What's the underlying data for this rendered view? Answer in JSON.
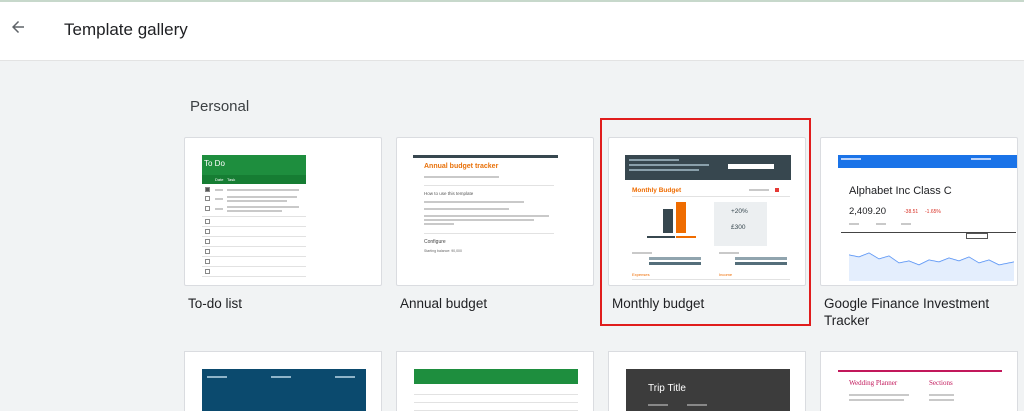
{
  "header": {
    "title": "Template gallery",
    "back_icon": "arrow-back-icon"
  },
  "section": {
    "title": "Personal"
  },
  "templates": [
    {
      "label": "To-do list",
      "thumb_title": "To Do",
      "thumb_header": "Date",
      "thumb_task": "Task",
      "thumb_link": "2. Do something",
      "accent": "#1e8e3e"
    },
    {
      "label": "Annual budget",
      "thumb_title": "Annual budget tracker",
      "thumb_subtitle": "How to use this template",
      "thumb_configure": "Configure",
      "thumb_value": "Starting balance: 90,000",
      "accent": "#e8710a"
    },
    {
      "label": "Monthly budget",
      "thumb_title": "Monthly Budget",
      "thumb_pct": "+20%",
      "thumb_amount": "£300",
      "thumb_expenses": "Expenses",
      "thumb_income": "Income",
      "selected": true,
      "accent": "#ef6c00"
    },
    {
      "label": "Google Finance Investment Tracker",
      "thumb_title": "Alphabet Inc Class C",
      "thumb_price": "2,409.20",
      "thumb_change": "-38.51",
      "thumb_pct": "-1.65%",
      "accent": "#1a73e8"
    }
  ],
  "bottom_templates": [
    {
      "thumb_title": "",
      "accent": "#0b4a6e"
    },
    {
      "thumb_title": "",
      "accent": "#1e8e3e"
    },
    {
      "thumb_title": "Trip Title",
      "accent": "#3c3c3c"
    },
    {
      "thumb_title_left": "Wedding Planner",
      "thumb_title_right": "Sections",
      "accent": "#c2185b"
    }
  ],
  "colors": {
    "selection_outline": "#e01c1c",
    "page_bg": "#f1f3f4"
  }
}
